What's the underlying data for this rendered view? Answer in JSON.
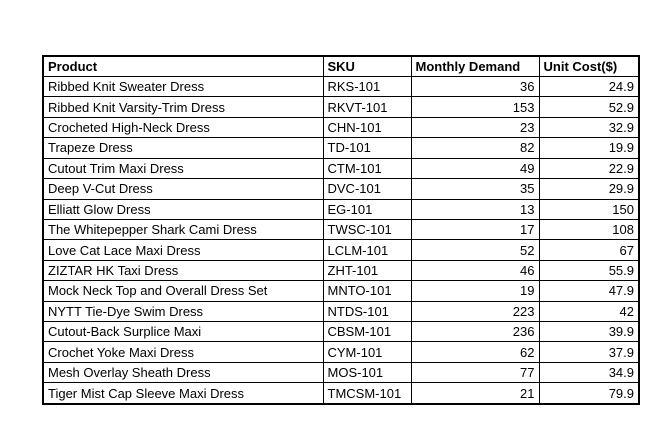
{
  "colors": {
    "background": "#ffffff",
    "border": "#000000",
    "text": "#000000"
  },
  "table": {
    "headers": {
      "product": "Product",
      "sku": "SKU",
      "demand": "Monthly Demand",
      "cost": "Unit Cost($)"
    },
    "rows": [
      {
        "product": "Ribbed Knit Sweater Dress",
        "sku": "RKS-101",
        "demand": 36,
        "cost": 24.9
      },
      {
        "product": "Ribbed Knit Varsity-Trim Dress",
        "sku": "RKVT-101",
        "demand": 153,
        "cost": 52.9
      },
      {
        "product": "Crocheted High-Neck Dress",
        "sku": "CHN-101",
        "demand": 23,
        "cost": 32.9
      },
      {
        "product": "Trapeze Dress",
        "sku": "TD-101",
        "demand": 82,
        "cost": 19.9
      },
      {
        "product": "Cutout Trim Maxi Dress",
        "sku": "CTM-101",
        "demand": 49,
        "cost": 22.9
      },
      {
        "product": "Deep V-Cut Dress",
        "sku": "DVC-101",
        "demand": 35,
        "cost": 29.9
      },
      {
        "product": "Elliatt Glow Dress",
        "sku": "EG-101",
        "demand": 13,
        "cost": 150
      },
      {
        "product": "The Whitepepper Shark Cami Dress",
        "sku": "TWSC-101",
        "demand": 17,
        "cost": 108
      },
      {
        "product": "Love Cat Lace Maxi Dress",
        "sku": "LCLM-101",
        "demand": 52,
        "cost": 67
      },
      {
        "product": "ZIZTAR HK Taxi Dress",
        "sku": "ZHT-101",
        "demand": 46,
        "cost": 55.9
      },
      {
        "product": "Mock Neck Top and Overall Dress Set",
        "sku": "MNTO-101",
        "demand": 19,
        "cost": 47.9
      },
      {
        "product": "NYTT Tie-Dye Swim Dress",
        "sku": "NTDS-101",
        "demand": 223,
        "cost": 42
      },
      {
        "product": "Cutout-Back Surplice Maxi",
        "sku": "CBSM-101",
        "demand": 236,
        "cost": 39.9
      },
      {
        "product": "Crochet Yoke Maxi Dress",
        "sku": "CYM-101",
        "demand": 62,
        "cost": 37.9
      },
      {
        "product": "Mesh Overlay Sheath Dress",
        "sku": "MOS-101",
        "demand": 77,
        "cost": 34.9
      },
      {
        "product": "Tiger Mist Cap Sleeve Maxi Dress",
        "sku": "TMCSM-101",
        "demand": 21,
        "cost": 79.9
      }
    ]
  }
}
